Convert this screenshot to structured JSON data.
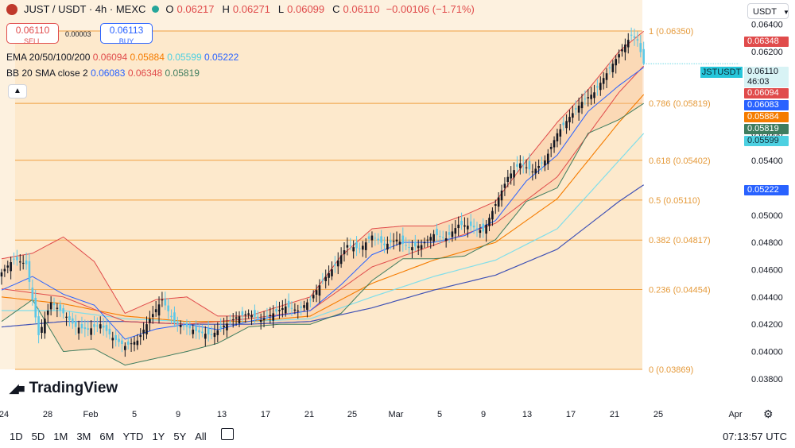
{
  "header": {
    "title": "JUST / USDT · 4h · MEXC",
    "o_label": "O",
    "o_value": "0.06217",
    "h_label": "H",
    "h_value": "0.06271",
    "l_label": "L",
    "l_value": "0.06099",
    "c_label": "C",
    "c_value": "0.06110",
    "change": "−0.00106 (−1.71%)"
  },
  "trade": {
    "sell_price": "0.06110",
    "sell_label": "SELL",
    "spread": "0.00003",
    "buy_price": "0.06113",
    "buy_label": "BUY"
  },
  "indicators": {
    "ema_label": "EMA 20/50/100/200",
    "ema_values": [
      "0.06094",
      "0.05884",
      "0.05599",
      "0.05222"
    ],
    "bb_label": "BB 20 SMA close 2",
    "bb_values": [
      "0.06083",
      "0.06348",
      "0.05819"
    ]
  },
  "currency_button": "USDT",
  "symbol_badge": "JSTUSDT",
  "last_price": "0.06110",
  "countdown": "46:03",
  "price_badges": [
    {
      "value": "0.06348",
      "color": "#e04b4b"
    },
    {
      "value": "0.06094",
      "color": "#e04b4b"
    },
    {
      "value": "0.06083",
      "color": "#2962ff"
    },
    {
      "value": "0.05884",
      "color": "#f57c00"
    },
    {
      "value": "0.05819",
      "color": "#3f7d5f"
    },
    {
      "value": "0.05599",
      "color": "#4dd0e1"
    },
    {
      "value": "0.05222",
      "color": "#2962ff"
    }
  ],
  "brand": "TradingView",
  "ranges": [
    "1D",
    "5D",
    "1M",
    "3M",
    "6M",
    "YTD",
    "1Y",
    "5Y",
    "All"
  ],
  "clock": "07:13:57 UTC",
  "colors": {
    "up": "#131722",
    "down": "#5bc8e8",
    "bb_upper": "#e04b4b",
    "bb_lower": "#3f7d5f",
    "bb_basis": "#2962ff",
    "ema20": "#e04b4b",
    "ema50": "#f57c00",
    "ema100": "#80deea",
    "ema200": "#3f51b5",
    "fib_fill": "#fde9cc",
    "fib_line": "#f0a040"
  },
  "chart_data": {
    "type": "candlestick",
    "title": "JUST / USDT · 4h · MEXC",
    "y_axis": {
      "ticks": [
        "0.06400",
        "0.06200",
        "0.06000",
        "0.05600",
        "0.05400",
        "0.05000",
        "0.04800",
        "0.04600",
        "0.04400",
        "0.04200",
        "0.04000",
        "0.03800"
      ],
      "ylim": [
        0.0365,
        0.0652
      ]
    },
    "x_axis": {
      "ticks": [
        "24",
        "28",
        "Feb",
        "5",
        "9",
        "13",
        "17",
        "21",
        "25",
        "Mar",
        "5",
        "9",
        "13",
        "17",
        "21",
        "25",
        "Apr"
      ]
    },
    "fibonacci": [
      {
        "label": "1 (0.06350)",
        "level": 0.0635
      },
      {
        "label": "0.786 (0.05819)",
        "level": 0.05819
      },
      {
        "label": "0.618 (0.05402)",
        "level": 0.05402
      },
      {
        "label": "0.5 (0.05110)",
        "level": 0.0511
      },
      {
        "label": "0.382 (0.04817)",
        "level": 0.04817
      },
      {
        "label": "0.236 (0.04454)",
        "level": 0.04454
      },
      {
        "label": "0 (0.03869)",
        "level": 0.03869
      }
    ],
    "price_trend": [
      [
        0,
        0.0458
      ],
      [
        4,
        0.0468
      ],
      [
        8,
        0.0464
      ],
      [
        12,
        0.0412
      ],
      [
        16,
        0.0436
      ],
      [
        20,
        0.0428
      ],
      [
        24,
        0.0418
      ],
      [
        28,
        0.0416
      ],
      [
        32,
        0.042
      ],
      [
        36,
        0.041
      ],
      [
        40,
        0.0404
      ],
      [
        44,
        0.0408
      ],
      [
        48,
        0.0424
      ],
      [
        52,
        0.0438
      ],
      [
        56,
        0.0421
      ],
      [
        60,
        0.0418
      ],
      [
        64,
        0.0414
      ],
      [
        68,
        0.0412
      ],
      [
        72,
        0.0419
      ],
      [
        76,
        0.0425
      ],
      [
        80,
        0.0428
      ],
      [
        84,
        0.0423
      ],
      [
        88,
        0.0428
      ],
      [
        92,
        0.0433
      ],
      [
        96,
        0.043
      ],
      [
        100,
        0.0438
      ],
      [
        104,
        0.0452
      ],
      [
        108,
        0.0463
      ],
      [
        112,
        0.0478
      ],
      [
        116,
        0.0475
      ],
      [
        120,
        0.0485
      ],
      [
        124,
        0.0478
      ],
      [
        128,
        0.0482
      ],
      [
        132,
        0.0476
      ],
      [
        136,
        0.0478
      ],
      [
        140,
        0.0486
      ],
      [
        144,
        0.0483
      ],
      [
        148,
        0.0493
      ],
      [
        152,
        0.0492
      ],
      [
        156,
        0.0488
      ],
      [
        160,
        0.0508
      ],
      [
        164,
        0.0528
      ],
      [
        168,
        0.0538
      ],
      [
        172,
        0.0532
      ],
      [
        176,
        0.054
      ],
      [
        180,
        0.056
      ],
      [
        184,
        0.0572
      ],
      [
        188,
        0.0583
      ],
      [
        192,
        0.059
      ],
      [
        196,
        0.0604
      ],
      [
        200,
        0.0618
      ],
      [
        204,
        0.0632
      ],
      [
        206,
        0.0628
      ],
      [
        208,
        0.0611
      ]
    ],
    "ema20_trend": [
      [
        0,
        0.0446
      ],
      [
        20,
        0.044
      ],
      [
        40,
        0.0422
      ],
      [
        60,
        0.042
      ],
      [
        80,
        0.0424
      ],
      [
        100,
        0.043
      ],
      [
        120,
        0.0462
      ],
      [
        140,
        0.0478
      ],
      [
        160,
        0.0494
      ],
      [
        180,
        0.0528
      ],
      [
        200,
        0.059
      ],
      [
        208,
        0.06094
      ]
    ],
    "ema50_trend": [
      [
        0,
        0.044
      ],
      [
        20,
        0.0435
      ],
      [
        40,
        0.0426
      ],
      [
        60,
        0.0422
      ],
      [
        80,
        0.0422
      ],
      [
        100,
        0.0426
      ],
      [
        120,
        0.045
      ],
      [
        140,
        0.0467
      ],
      [
        160,
        0.048
      ],
      [
        180,
        0.0512
      ],
      [
        200,
        0.0568
      ],
      [
        208,
        0.05884
      ]
    ],
    "ema100_trend": [
      [
        0,
        0.043
      ],
      [
        20,
        0.043
      ],
      [
        40,
        0.0424
      ],
      [
        60,
        0.0422
      ],
      [
        80,
        0.0422
      ],
      [
        100,
        0.0424
      ],
      [
        120,
        0.044
      ],
      [
        140,
        0.0455
      ],
      [
        160,
        0.0467
      ],
      [
        180,
        0.049
      ],
      [
        200,
        0.054
      ],
      [
        208,
        0.05599
      ]
    ],
    "ema200_trend": [
      [
        0,
        0.0418
      ],
      [
        20,
        0.0422
      ],
      [
        40,
        0.0422
      ],
      [
        60,
        0.042
      ],
      [
        80,
        0.042
      ],
      [
        100,
        0.0422
      ],
      [
        120,
        0.0432
      ],
      [
        140,
        0.0445
      ],
      [
        160,
        0.0456
      ],
      [
        180,
        0.0475
      ],
      [
        200,
        0.051
      ],
      [
        208,
        0.05222
      ]
    ],
    "bb_upper_trend": [
      [
        0,
        0.0468
      ],
      [
        10,
        0.0472
      ],
      [
        20,
        0.0484
      ],
      [
        30,
        0.0466
      ],
      [
        40,
        0.0428
      ],
      [
        50,
        0.0438
      ],
      [
        60,
        0.044
      ],
      [
        70,
        0.0426
      ],
      [
        80,
        0.0426
      ],
      [
        90,
        0.0433
      ],
      [
        100,
        0.044
      ],
      [
        110,
        0.047
      ],
      [
        120,
        0.049
      ],
      [
        130,
        0.0492
      ],
      [
        140,
        0.0492
      ],
      [
        150,
        0.05
      ],
      [
        160,
        0.051
      ],
      [
        170,
        0.054
      ],
      [
        180,
        0.0568
      ],
      [
        190,
        0.0592
      ],
      [
        200,
        0.062
      ],
      [
        208,
        0.06348
      ]
    ],
    "bb_lower_trend": [
      [
        0,
        0.0422
      ],
      [
        10,
        0.0438
      ],
      [
        20,
        0.04
      ],
      [
        30,
        0.0402
      ],
      [
        40,
        0.039
      ],
      [
        50,
        0.0395
      ],
      [
        60,
        0.04
      ],
      [
        70,
        0.0406
      ],
      [
        80,
        0.0418
      ],
      [
        90,
        0.042
      ],
      [
        100,
        0.042
      ],
      [
        110,
        0.0428
      ],
      [
        120,
        0.0452
      ],
      [
        130,
        0.0468
      ],
      [
        140,
        0.0468
      ],
      [
        150,
        0.047
      ],
      [
        160,
        0.0482
      ],
      [
        170,
        0.051
      ],
      [
        180,
        0.052
      ],
      [
        190,
        0.056
      ],
      [
        200,
        0.057
      ],
      [
        208,
        0.05819
      ]
    ]
  }
}
